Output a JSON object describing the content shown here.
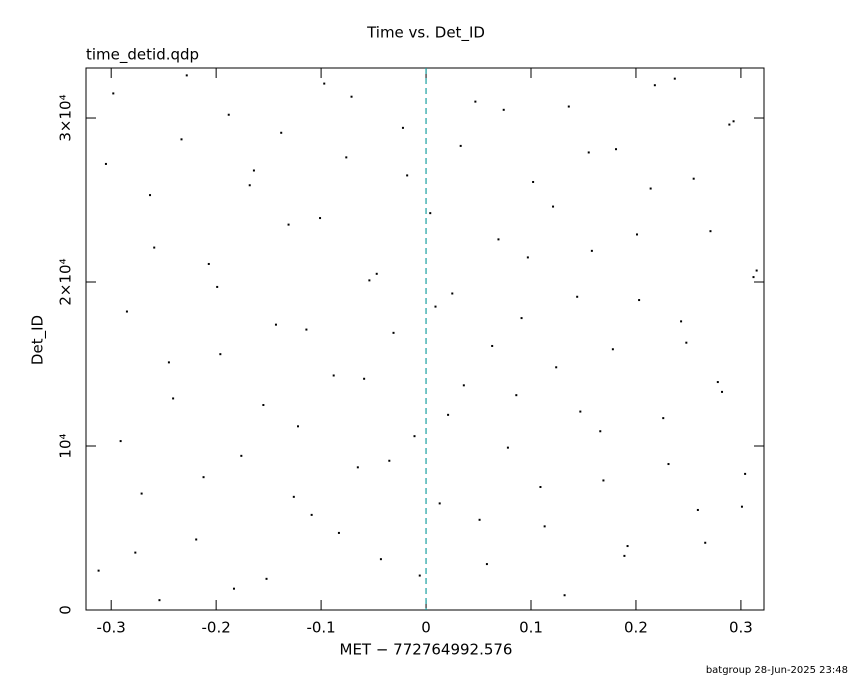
{
  "chart_data": {
    "type": "scatter",
    "title": "Time vs. Det_ID",
    "subtitle": "time_detid.qdp",
    "xlabel": "MET − 772764992.576",
    "ylabel": "Det_ID",
    "footer": "batgroup 28-Jun-2025 23:48",
    "color": "#000000",
    "vline": {
      "x": 0,
      "color": "#1aa0a0"
    },
    "xlim": [
      -0.324,
      0.322
    ],
    "ylim": [
      0,
      33050
    ],
    "xticks": [
      -0.3,
      -0.2,
      -0.1,
      0,
      0.1,
      0.2,
      0.3
    ],
    "yticks": [
      0,
      {
        "value": 10000,
        "label": "10⁴"
      },
      {
        "value": 20000,
        "label": "2×10⁴"
      },
      {
        "value": 30000,
        "label": "3×10⁴"
      }
    ],
    "x": [
      -0.312,
      -0.298,
      -0.285,
      -0.271,
      -0.263,
      -0.254,
      -0.241,
      -0.233,
      -0.219,
      -0.207,
      -0.196,
      -0.188,
      -0.176,
      -0.164,
      -0.152,
      -0.143,
      -0.131,
      -0.122,
      -0.109,
      -0.097,
      -0.088,
      -0.076,
      -0.065,
      -0.054,
      -0.043,
      -0.031,
      -0.022,
      -0.011,
      0.004,
      0.013,
      0.025,
      0.036,
      0.047,
      0.058,
      0.069,
      0.078,
      0.091,
      0.102,
      0.113,
      0.124,
      0.136,
      0.147,
      0.158,
      0.169,
      0.181,
      0.192,
      0.203,
      0.214,
      0.226,
      0.237,
      0.248,
      0.259,
      0.271,
      0.282,
      0.293,
      0.304,
      0.315,
      -0.305,
      -0.291,
      -0.277,
      -0.259,
      -0.245,
      -0.228,
      -0.212,
      -0.199,
      -0.183,
      -0.168,
      -0.155,
      -0.138,
      -0.126,
      -0.114,
      -0.101,
      -0.083,
      -0.071,
      -0.059,
      -0.047,
      -0.035,
      -0.018,
      -0.006,
      0.009,
      0.021,
      0.033,
      0.051,
      0.063,
      0.074,
      0.086,
      0.097,
      0.109,
      0.121,
      0.132,
      0.144,
      0.155,
      0.166,
      0.178,
      0.189,
      0.201,
      0.218,
      0.231,
      0.243,
      0.255,
      0.266,
      0.278,
      0.289,
      0.301,
      0.312
    ],
    "values": [
      2400,
      31500,
      18200,
      7100,
      25300,
      600,
      12900,
      28700,
      4300,
      21100,
      15600,
      30200,
      9400,
      26800,
      1900,
      17400,
      23500,
      11200,
      5800,
      32100,
      14300,
      27600,
      8700,
      20100,
      3100,
      16900,
      29400,
      10600,
      24200,
      6500,
      19300,
      13700,
      31000,
      2800,
      22600,
      9900,
      17800,
      26100,
      5100,
      14800,
      30700,
      12100,
      21900,
      7900,
      28100,
      3900,
      18900,
      25700,
      11700,
      32400,
      16300,
      6100,
      23100,
      13300,
      29800,
      8300,
      20700,
      27200,
      10300,
      3500,
      22100,
      15100,
      32600,
      8100,
      19700,
      1300,
      25900,
      12500,
      29100,
      6900,
      17100,
      23900,
      4700,
      31300,
      14100,
      20500,
      9100,
      26500,
      2100,
      18500,
      11900,
      28300,
      5500,
      16100,
      30500,
      13100,
      21500,
      7500,
      24600,
      900,
      19100,
      27900,
      10900,
      15900,
      3300,
      22900,
      32000,
      8900,
      17600,
      26300,
      4100,
      13900,
      29600,
      6300,
      20300
    ]
  }
}
